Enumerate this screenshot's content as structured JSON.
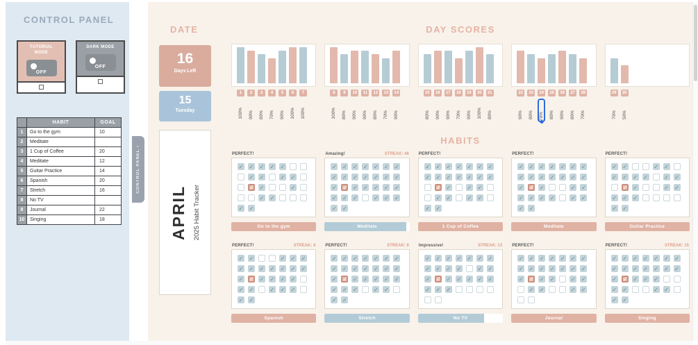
{
  "control_panel": {
    "title": "CONTROL PANEL",
    "collapse_tab": "CONTROL PANEL ‹",
    "tutorial": {
      "label": "TUTORIAL MODE",
      "state": "OFF",
      "checked": false
    },
    "dark": {
      "label": "DARK MODE",
      "state": "OFF",
      "checked": false
    },
    "table": {
      "headers": [
        "",
        "HABIT",
        "GOAL"
      ],
      "rows": [
        {
          "num": "1",
          "habit": "Go to the gym",
          "goal": "10"
        },
        {
          "num": "2",
          "habit": "Meditate",
          "goal": ""
        },
        {
          "num": "3",
          "habit": "1 Cup of Coffee",
          "goal": "20"
        },
        {
          "num": "4",
          "habit": "Meditate",
          "goal": "12"
        },
        {
          "num": "5",
          "habit": "Guitar Practice",
          "goal": "14"
        },
        {
          "num": "6",
          "habit": "Spanish",
          "goal": "20"
        },
        {
          "num": "7",
          "habit": "Stretch",
          "goal": "16"
        },
        {
          "num": "8",
          "habit": "No TV",
          "goal": ""
        },
        {
          "num": "9",
          "habit": "Journal",
          "goal": "22"
        },
        {
          "num": "10",
          "habit": "Singing",
          "goal": "18"
        }
      ]
    }
  },
  "date": {
    "section_title": "DATE",
    "days_left_value": "16",
    "days_left_label": "Days Left",
    "day_value": "15",
    "day_label": "Tuesday",
    "month": "APRIL",
    "subtitle": "2025 Habit Tracker"
  },
  "day_scores": {
    "title": "DAY SCORES"
  },
  "chart_data": {
    "type": "bar",
    "title": "DAY SCORES",
    "x": [
      1,
      2,
      3,
      4,
      5,
      6,
      7,
      8,
      9,
      10,
      11,
      12,
      13,
      14,
      15,
      16,
      17,
      18,
      19,
      20,
      21,
      22,
      23,
      24,
      25,
      26,
      27,
      28,
      29,
      30
    ],
    "values": [
      100,
      90,
      80,
      70,
      90,
      100,
      100,
      100,
      80,
      90,
      90,
      80,
      70,
      90,
      80,
      90,
      90,
      70,
      90,
      100,
      80,
      90,
      80,
      70,
      80,
      90,
      80,
      70,
      70,
      50
    ],
    "ylim": [
      0,
      100
    ],
    "groups": [
      [
        1,
        7
      ],
      [
        8,
        14
      ],
      [
        15,
        21
      ],
      [
        22,
        28
      ],
      [
        29,
        30
      ]
    ],
    "selected_day": 24,
    "selected_value_label": "70%",
    "bar_colors": {
      "odd_day": "#b6ccd5",
      "even_day": "#e2b9ac"
    }
  },
  "habits_section": {
    "title": "HABITS",
    "cards": [
      {
        "badge": "PERFECT!",
        "streak": "",
        "name": "Go to the gym",
        "color": "rose",
        "progress": 100,
        "rows": [
          "1111100",
          "0110110",
          "0210010",
          "0011000",
          "11"
        ]
      },
      {
        "badge": "Amazing!",
        "streak": "STREAK: 46",
        "name": "Meditate",
        "color": "blue",
        "progress": 96,
        "rows": [
          "1111111",
          "1111111",
          "1211111",
          "1110111",
          "11"
        ]
      },
      {
        "badge": "PERFECT!",
        "streak": "",
        "name": "1 Cup of Coffee",
        "color": "rose",
        "progress": 100,
        "rows": [
          "1111111",
          "1111111",
          "0210110",
          "0110110",
          "11"
        ]
      },
      {
        "badge": "PERFECT!",
        "streak": "",
        "name": "Meditate",
        "color": "rose",
        "progress": 100,
        "rows": [
          "1111111",
          "1111111",
          "1210011",
          "1111011",
          "11"
        ]
      },
      {
        "badge": "PERFECT!",
        "streak": "",
        "name": "Guitar Practice",
        "color": "rose",
        "progress": 100,
        "rows": [
          "1100110",
          "1111011",
          "0210011",
          "1110000",
          "11"
        ]
      },
      {
        "badge": "PERFECT!",
        "streak": "STREAK: 4",
        "name": "Spanish",
        "color": "rose",
        "progress": 100,
        "rows": [
          "1100111",
          "1111111",
          "1211110",
          "1101110",
          "11"
        ]
      },
      {
        "badge": "PERFECT!",
        "streak": "STREAK: 6",
        "name": "Stretch",
        "color": "blue",
        "progress": 100,
        "rows": [
          "1111111",
          "1111111",
          "1211111",
          "1110110",
          "11"
        ]
      },
      {
        "badge": "Impressive!",
        "streak": "STREAK: 13",
        "name": "No TV",
        "color": "blue",
        "progress": 78,
        "rows": [
          "1111111",
          "1111011",
          "1211111",
          "1110000",
          "00"
        ]
      },
      {
        "badge": "PERFECT!",
        "streak": "",
        "name": "Journal",
        "color": "rose",
        "progress": 100,
        "rows": [
          "1111111",
          "1111111",
          "1211011",
          "0110011",
          "00"
        ]
      },
      {
        "badge": "PERFECT!",
        "streak": "STREAK: 15",
        "name": "Singing",
        "color": "rose",
        "progress": 100,
        "rows": [
          "1111111",
          "1111111",
          "1211100",
          "1100110",
          "11"
        ]
      }
    ]
  }
}
